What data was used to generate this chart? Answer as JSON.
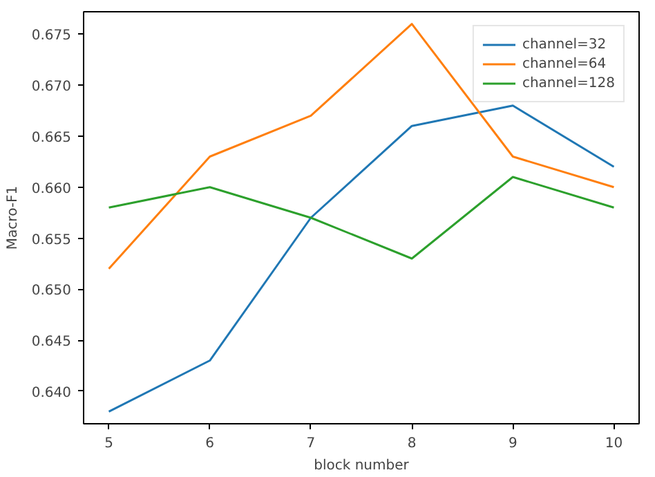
{
  "chart_data": {
    "type": "line",
    "xlabel": "block number",
    "ylabel": "Macro-F1",
    "x": [
      5,
      6,
      7,
      8,
      9,
      10
    ],
    "series": [
      {
        "name": "channel=32",
        "color": "#1f77b4",
        "values": [
          0.638,
          0.643,
          0.657,
          0.666,
          0.668,
          0.662
        ]
      },
      {
        "name": "channel=64",
        "color": "#ff7f0e",
        "values": [
          0.652,
          0.663,
          0.667,
          0.676,
          0.663,
          0.66
        ]
      },
      {
        "name": "channel=128",
        "color": "#2ca02c",
        "values": [
          0.658,
          0.66,
          0.657,
          0.653,
          0.661,
          0.658
        ]
      }
    ],
    "xlim": [
      4.75,
      10.25
    ],
    "ylim": [
      0.6368,
      0.6772
    ],
    "xticks": [
      5,
      6,
      7,
      8,
      9,
      10
    ],
    "yticks": [
      {
        "value": 0.64,
        "label": "0.640"
      },
      {
        "value": 0.645,
        "label": "0.645"
      },
      {
        "value": 0.65,
        "label": "0.650"
      },
      {
        "value": 0.655,
        "label": "0.655"
      },
      {
        "value": 0.66,
        "label": "0.660"
      },
      {
        "value": 0.665,
        "label": "0.665"
      },
      {
        "value": 0.67,
        "label": "0.670"
      },
      {
        "value": 0.675,
        "label": "0.675"
      }
    ],
    "legend": "top right",
    "marker": "none",
    "line_style": "solid"
  }
}
